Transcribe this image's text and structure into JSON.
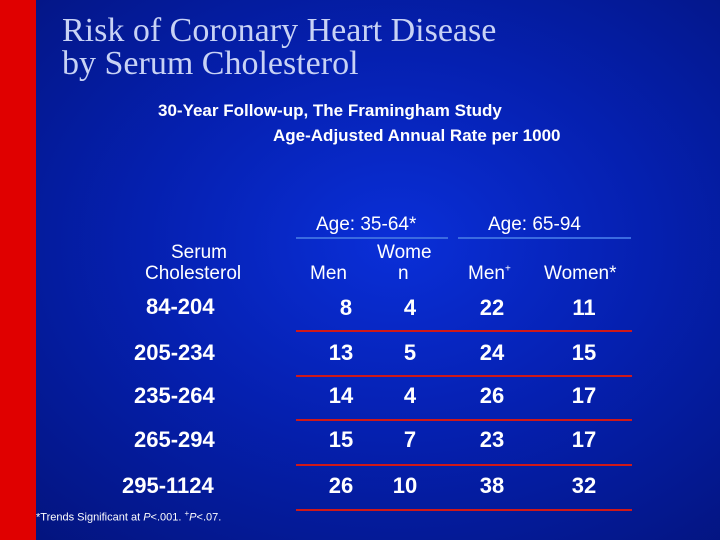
{
  "title_lines": [
    "Risk of Coronary Heart Disease",
    "by Serum Cholesterol"
  ],
  "subtitle_line1": "30-Year Follow-up, The Framingham Study",
  "subtitle_line2": "Age-Adjusted Annual Rate per 1000",
  "group_headers": [
    "Age: 35-64*",
    "Age: 65-94"
  ],
  "row_header": {
    "line1": "Serum",
    "line2": "Cholesterol"
  },
  "column_headers": [
    {
      "line1": "",
      "line2": "Men"
    },
    {
      "line1": "Wome",
      "line2": "n"
    },
    {
      "line1": "",
      "line2": "Men",
      "sup": "+"
    },
    {
      "line1": "",
      "line2": "Women*"
    }
  ],
  "rows": [
    {
      "label": "84-204",
      "cells": [
        "8",
        "4",
        "22",
        "11"
      ]
    },
    {
      "label": "205-234",
      "cells": [
        "13",
        "5",
        "24",
        "15"
      ]
    },
    {
      "label": "235-264",
      "cells": [
        "14",
        "4",
        "26",
        "17"
      ]
    },
    {
      "label": "265-294",
      "cells": [
        "15",
        "7",
        "23",
        "17"
      ]
    },
    {
      "label": "295-1124",
      "cells": [
        "26",
        "10",
        "38",
        "32"
      ]
    }
  ],
  "footnote": {
    "prefix": "*Trends Significant at ",
    "p1": "P",
    "mid": "<.001. ",
    "sup": "+",
    "p2": "P",
    "end": "<.07."
  },
  "colors": {
    "background": "#0520b0",
    "accent_bar": "#e00000",
    "title": "#c8d2f5",
    "header_rule": "#3b6be0",
    "row_rule": "#d01818"
  }
}
